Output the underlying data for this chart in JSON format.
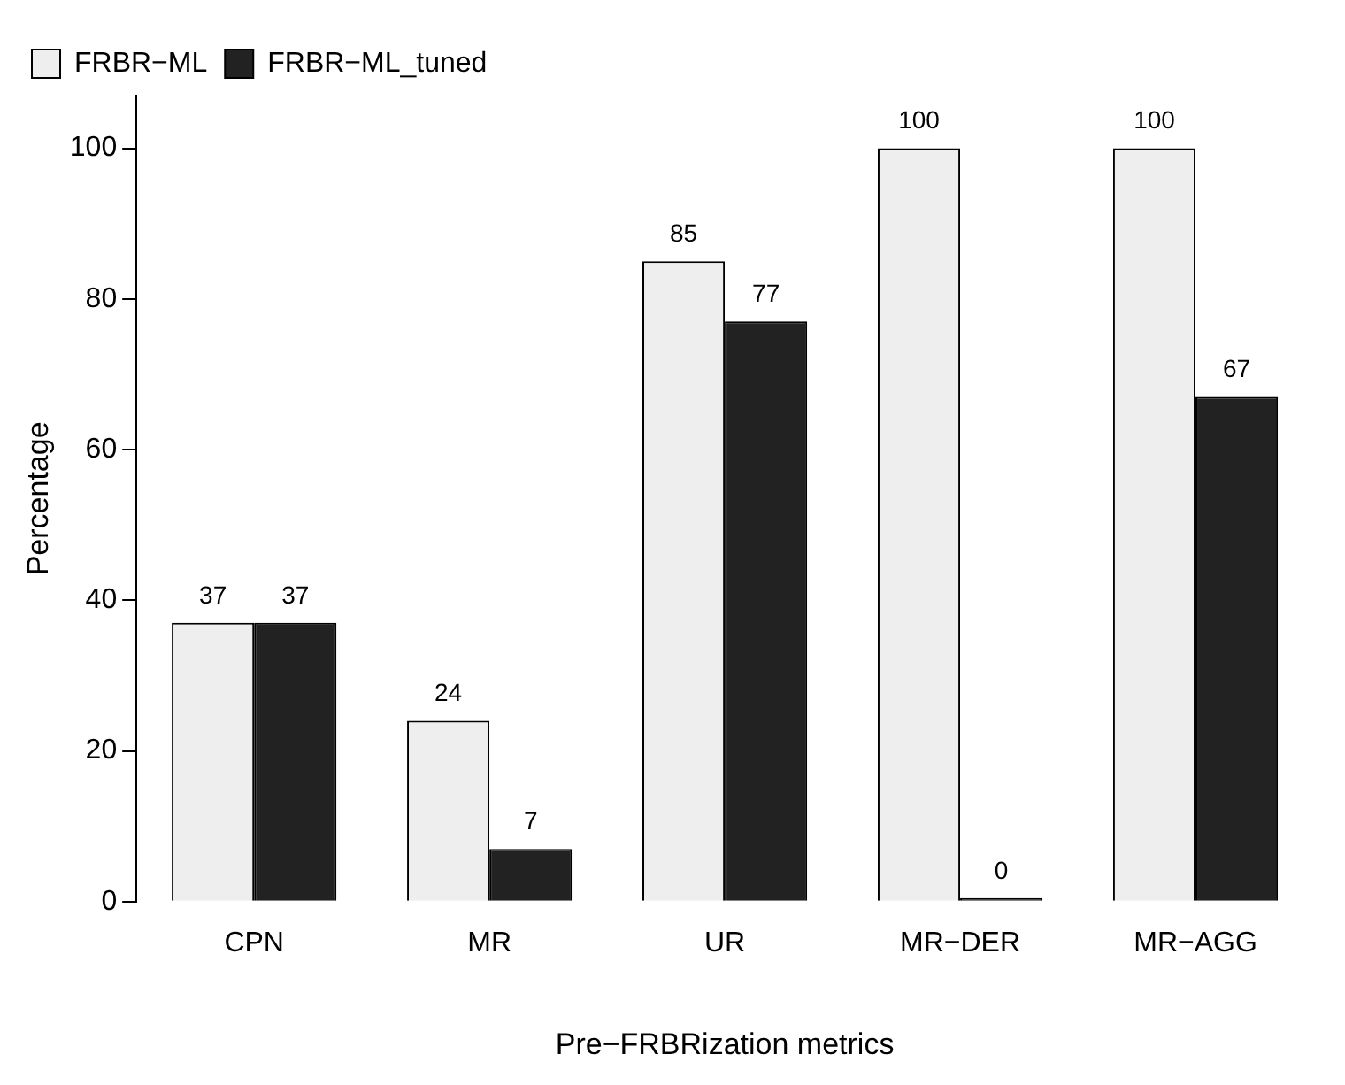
{
  "chart_data": {
    "type": "bar",
    "xlabel": "Pre−FRBRization metrics",
    "ylabel": "Percentage",
    "categories": [
      "CPN",
      "MR",
      "UR",
      "MR−DER",
      "MR−AGG"
    ],
    "series": [
      {
        "name": "FRBR−ML",
        "color": "#eeeeee",
        "values": [
          37,
          24,
          85,
          100,
          100
        ]
      },
      {
        "name": "FRBR−ML_tuned",
        "color": "#222222",
        "values": [
          37,
          7,
          77,
          0,
          67
        ]
      }
    ],
    "ylim": [
      0,
      107
    ],
    "yticks": [
      0,
      20,
      40,
      60,
      80,
      100
    ],
    "grid": false,
    "legend": "top left",
    "data_labels": true
  }
}
